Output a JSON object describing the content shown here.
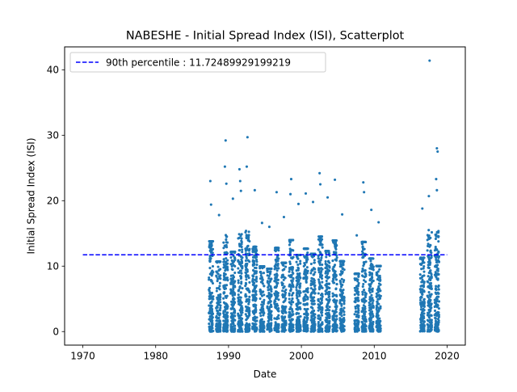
{
  "chart_data": {
    "type": "scatter",
    "title": "NABESHE - Initial Spread Index (ISI), Scatterplot",
    "xlabel": "Date",
    "ylabel": "Initial Spread Index (ISI)",
    "xlim": [
      1967.5,
      2022.5
    ],
    "ylim": [
      -2.07,
      43.5
    ],
    "xticks": [
      1970,
      1980,
      1990,
      2000,
      2010,
      2020
    ],
    "yticks": [
      0,
      10,
      20,
      30,
      40
    ],
    "grid": false,
    "legend_position": "top-left",
    "reference_line": {
      "label": "90th percentile : 11.72489929199219",
      "y": 11.72489929199219,
      "x_range": [
        1970,
        2020
      ],
      "color": "#0000ff",
      "style": "dashed"
    },
    "series": [
      {
        "color": "#1f77b4",
        "seasons": [
          {
            "year": 1987,
            "max": 23.0
          },
          {
            "year": 1988,
            "max": 17.8
          },
          {
            "year": 1989,
            "max": 29.2
          },
          {
            "year": 1990,
            "max": 20.3
          },
          {
            "year": 1991,
            "max": 24.8
          },
          {
            "year": 1992,
            "max": 29.7
          },
          {
            "year": 1993,
            "max": 21.6
          },
          {
            "year": 1994,
            "max": 16.6
          },
          {
            "year": 1995,
            "max": 16.0
          },
          {
            "year": 1996,
            "max": 21.3
          },
          {
            "year": 1997,
            "max": 17.5
          },
          {
            "year": 1998,
            "max": 23.3
          },
          {
            "year": 1999,
            "max": 19.5
          },
          {
            "year": 2000,
            "max": 21.1
          },
          {
            "year": 2001,
            "max": 19.8
          },
          {
            "year": 2002,
            "max": 24.2
          },
          {
            "year": 2003,
            "max": 20.5
          },
          {
            "year": 2004,
            "max": 23.2
          },
          {
            "year": 2005,
            "max": 17.9
          },
          {
            "year": 2007,
            "max": 14.7
          },
          {
            "year": 2008,
            "max": 22.8
          },
          {
            "year": 2009,
            "max": 18.6
          },
          {
            "year": 2010,
            "max": 16.7
          },
          {
            "year": 2016,
            "max": 18.8
          },
          {
            "year": 2017,
            "max": 41.4
          },
          {
            "year": 2018,
            "max": 28.0
          }
        ],
        "points": [
          [
            1987.5,
            23.0
          ],
          [
            1987.6,
            19.4
          ],
          [
            1988.7,
            17.8
          ],
          [
            1989.6,
            29.2
          ],
          [
            1989.5,
            25.2
          ],
          [
            1989.7,
            22.6
          ],
          [
            1990.6,
            20.3
          ],
          [
            1991.5,
            24.8
          ],
          [
            1991.6,
            23.0
          ],
          [
            1991.7,
            21.5
          ],
          [
            1992.6,
            29.7
          ],
          [
            1992.5,
            25.2
          ],
          [
            1993.6,
            21.6
          ],
          [
            1994.6,
            16.6
          ],
          [
            1995.6,
            16.0
          ],
          [
            1996.6,
            21.3
          ],
          [
            1997.6,
            17.5
          ],
          [
            1998.6,
            23.3
          ],
          [
            1998.5,
            21.0
          ],
          [
            1999.6,
            19.5
          ],
          [
            2000.6,
            21.1
          ],
          [
            2001.6,
            19.8
          ],
          [
            2002.5,
            24.2
          ],
          [
            2002.6,
            22.5
          ],
          [
            2003.6,
            20.5
          ],
          [
            2004.6,
            23.2
          ],
          [
            2005.6,
            17.9
          ],
          [
            2007.6,
            14.7
          ],
          [
            2008.5,
            22.8
          ],
          [
            2008.6,
            21.3
          ],
          [
            2009.6,
            18.6
          ],
          [
            2010.6,
            16.7
          ],
          [
            2016.6,
            18.8
          ],
          [
            2017.6,
            41.4
          ],
          [
            2017.5,
            20.7
          ],
          [
            2018.6,
            28.0
          ],
          [
            2018.7,
            27.5
          ],
          [
            2018.5,
            23.3
          ],
          [
            2018.6,
            21.6
          ]
        ]
      }
    ]
  }
}
